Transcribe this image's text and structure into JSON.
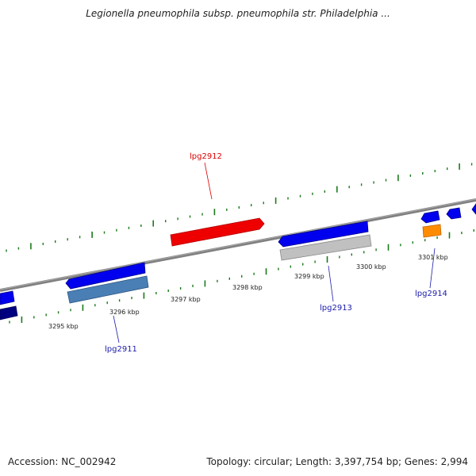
{
  "header": {
    "title": "Legionella pneumophila subsp. pneumophila str. Philadelphia ..."
  },
  "footer": {
    "accession": "Accession: NC_002942",
    "summary": "Topology: circular; Length: 3,397,754 bp; Genes: 2,994"
  },
  "colors": {
    "backbone": "#808080",
    "tick": "#1a7a1a",
    "forward_gene": "#0000ee",
    "highlight_gene": "#ee0000",
    "reverse_gene_steel": "#4a7fb5",
    "reverse_gene_gray": "#c0c0c0",
    "reverse_gene_navy": "#000080",
    "reverse_gene_orange": "#ff8c00",
    "label_blue": "#1a1aaa",
    "label_red": "#dd0000"
  },
  "scale": {
    "ticks": [
      {
        "label": "3295 kbp"
      },
      {
        "label": "3296 kbp"
      },
      {
        "label": "3297 kbp"
      },
      {
        "label": "3298 kbp"
      },
      {
        "label": "3299 kbp"
      },
      {
        "label": "3300 kbp"
      },
      {
        "label": "3301 kbp"
      }
    ]
  },
  "genes": [
    {
      "id": "lpg2911",
      "label": "lpg2911"
    },
    {
      "id": "lpg2912",
      "label": "lpg2912"
    },
    {
      "id": "lpg2913",
      "label": "lpg2913"
    },
    {
      "id": "lpg2914",
      "label": "lpg2914"
    }
  ]
}
